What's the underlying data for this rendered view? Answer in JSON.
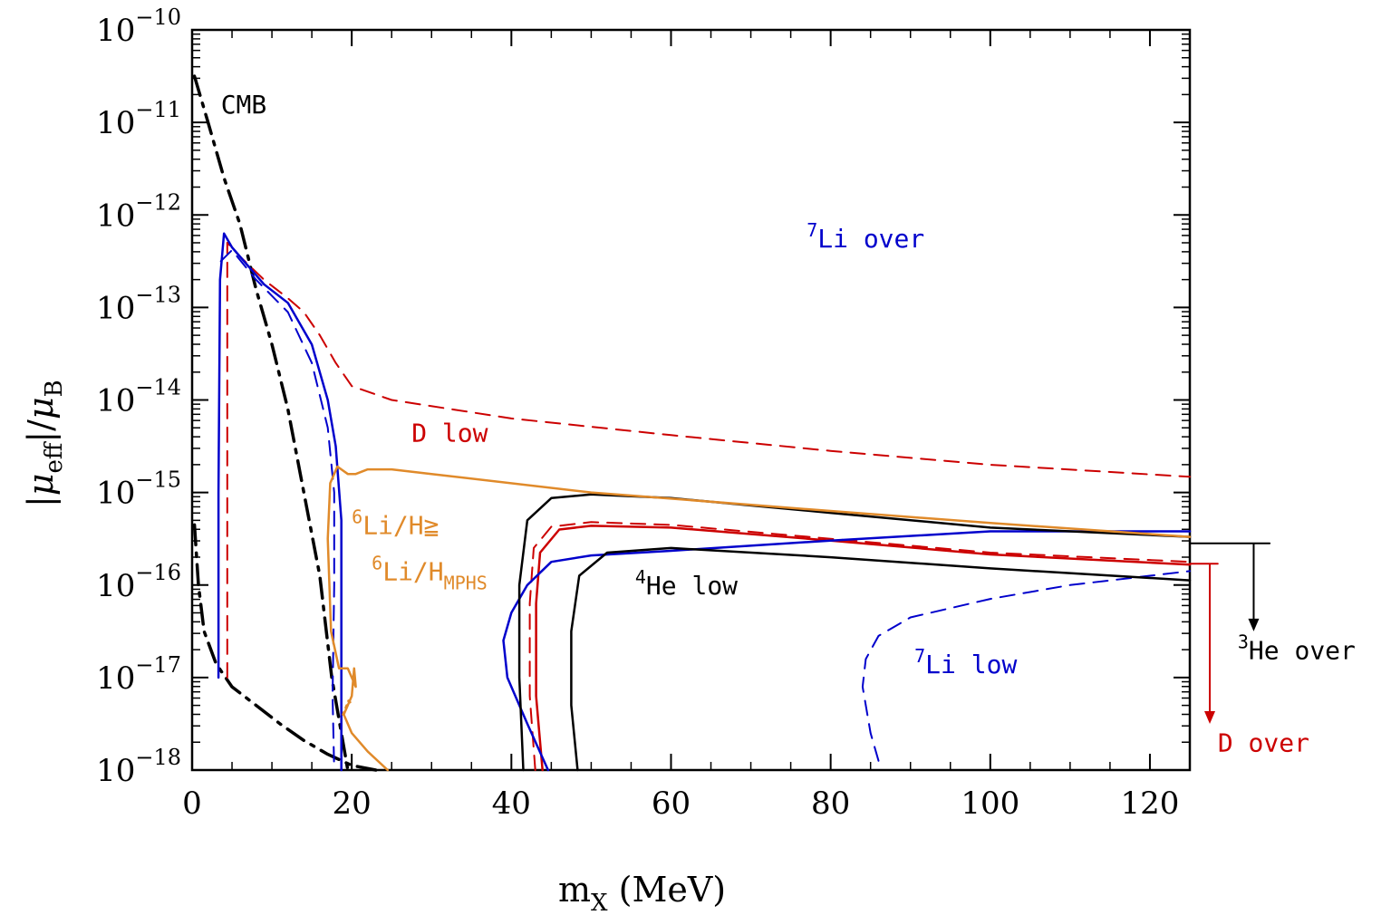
{
  "chart_data": {
    "type": "line",
    "xlabel": "m_X (MeV)",
    "xlabel_parts": {
      "main": "m",
      "sub": "X",
      "units": " (MeV)"
    },
    "ylabel": "|μ_eff|/μ_B",
    "ylabel_parts": {
      "bar_open": "|",
      "mu": "μ",
      "sub_eff": "eff",
      "bar_close": "|/",
      "mu2": "μ",
      "sub_b": "B"
    },
    "xlim": [
      0,
      125
    ],
    "ylim_log10": [
      -18,
      -10
    ],
    "y_scale": "log",
    "x_ticks": [
      0,
      20,
      40,
      60,
      80,
      100,
      120
    ],
    "x_tick_labels": [
      "0",
      "20",
      "40",
      "60",
      "80",
      "100",
      "120"
    ],
    "y_ticks_log10": [
      -10,
      -11,
      -12,
      -13,
      -14,
      -15,
      -16,
      -17,
      -18
    ],
    "y_tick_base": "10",
    "y_tick_exponents": [
      "−10",
      "−11",
      "−12",
      "−13",
      "−14",
      "−15",
      "−16",
      "−17",
      "−18"
    ],
    "grid": false,
    "annotations": [
      {
        "id": "cmb",
        "text": "CMB",
        "color": "#000000",
        "x": 3.6,
        "y_log10": -10.9
      },
      {
        "id": "li7-over",
        "sup": "7",
        "text": "Li over",
        "color": "#0000cc",
        "x": 77,
        "y_log10": -12.35
      },
      {
        "id": "d-low",
        "text": "D low",
        "color": "#cc0000",
        "x": 27.5,
        "y_log10": -14.45
      },
      {
        "id": "li6-ratio",
        "sup": "6",
        "text": "Li/H≧",
        "color": "#e08a2a",
        "x": 20,
        "y_log10": -15.45
      },
      {
        "id": "li6-mphs",
        "sup": "6",
        "text": "Li/H",
        "sub": "MPHS",
        "color": "#e08a2a",
        "x": 22.5,
        "y_log10": -15.95
      },
      {
        "id": "he4-low",
        "sup": "4",
        "text": "He low",
        "color": "#000000",
        "x": 55.5,
        "y_log10": -16.1
      },
      {
        "id": "li7-low",
        "sup": "7",
        "text": "Li low",
        "color": "#0000cc",
        "x": 90.5,
        "y_log10": -16.95
      },
      {
        "id": "he3-over",
        "sup": "3",
        "text": "He over",
        "color": "#000000",
        "x": 131,
        "y_log10": -16.8
      },
      {
        "id": "d-over",
        "text": "D over",
        "color": "#cc0000",
        "x": 128.5,
        "y_log10": -17.8
      }
    ],
    "arrows": [
      {
        "id": "he3-arrow",
        "color": "#000000",
        "x_from": 125,
        "x_to": 135,
        "y_log10": -15.55,
        "x_arrow": 133,
        "y_to_log10": -16.5
      },
      {
        "id": "d-arrow",
        "color": "#cc0000",
        "x_from": 125,
        "x_to": 128.5,
        "y_log10": -15.77,
        "x_arrow": 127.5,
        "y_to_log10": -17.5
      }
    ],
    "series": [
      {
        "id": "cmb-upper",
        "color": "#000000",
        "dash": "dashdot",
        "width": 3.5,
        "points": [
          [
            0.3,
            -10.5
          ],
          [
            2,
            -11
          ],
          [
            4,
            -11.6
          ],
          [
            6,
            -12.1
          ],
          [
            8,
            -12.8
          ],
          [
            10,
            -13.4
          ],
          [
            12,
            -14.1
          ],
          [
            14,
            -15
          ],
          [
            16,
            -15.9
          ],
          [
            17.5,
            -17
          ],
          [
            19.5,
            -18
          ]
        ]
      },
      {
        "id": "cmb-lower",
        "color": "#000000",
        "dash": "dashdot",
        "width": 3.5,
        "points": [
          [
            0.3,
            -15.35
          ],
          [
            0.8,
            -16
          ],
          [
            1.5,
            -16.5
          ],
          [
            3,
            -16.85
          ],
          [
            5,
            -17.1
          ],
          [
            8,
            -17.3
          ],
          [
            11,
            -17.5
          ],
          [
            14,
            -17.68
          ],
          [
            17,
            -17.83
          ],
          [
            20,
            -17.95
          ],
          [
            23,
            -18
          ]
        ]
      },
      {
        "id": "d-low-upper",
        "color": "#cc0000",
        "dash": "dashed",
        "width": 2,
        "points": [
          [
            4.4,
            -17
          ],
          [
            4.4,
            -14
          ],
          [
            4.4,
            -12.3
          ],
          [
            6,
            -12.45
          ],
          [
            9,
            -12.7
          ],
          [
            12,
            -12.9
          ],
          [
            14,
            -13.05
          ],
          [
            16,
            -13.3
          ],
          [
            18,
            -13.6
          ],
          [
            20,
            -13.85
          ],
          [
            25,
            -14
          ],
          [
            40,
            -14.2
          ],
          [
            60,
            -14.38
          ],
          [
            80,
            -14.55
          ],
          [
            100,
            -14.7
          ],
          [
            125,
            -14.83
          ]
        ]
      },
      {
        "id": "d-low-lower",
        "color": "#cc0000",
        "dash": "dashed",
        "width": 2,
        "points": [
          [
            43,
            -18
          ],
          [
            42.3,
            -17.2
          ],
          [
            42.3,
            -16.2
          ],
          [
            42.8,
            -15.6
          ],
          [
            45,
            -15.37
          ],
          [
            50,
            -15.32
          ],
          [
            60,
            -15.35
          ],
          [
            80,
            -15.5
          ],
          [
            100,
            -15.65
          ],
          [
            125,
            -15.75
          ]
        ]
      },
      {
        "id": "d-low-lower-solid",
        "color": "#cc0000",
        "dash": "solid",
        "width": 2.5,
        "points": [
          [
            43.9,
            -18
          ],
          [
            43.1,
            -17.2
          ],
          [
            43.1,
            -16.2
          ],
          [
            43.6,
            -15.65
          ],
          [
            46,
            -15.4
          ],
          [
            50,
            -15.36
          ],
          [
            60,
            -15.38
          ],
          [
            80,
            -15.52
          ],
          [
            100,
            -15.67
          ],
          [
            125,
            -15.78
          ]
        ]
      },
      {
        "id": "li7-over-solid",
        "color": "#0000cc",
        "dash": "solid",
        "width": 2.5,
        "points": [
          [
            3.3,
            -17
          ],
          [
            3.3,
            -15
          ],
          [
            3.5,
            -12.7
          ],
          [
            4,
            -12.2
          ],
          [
            5,
            -12.35
          ],
          [
            7,
            -12.55
          ],
          [
            9,
            -12.75
          ],
          [
            12,
            -12.95
          ],
          [
            15,
            -13.4
          ],
          [
            17,
            -14
          ],
          [
            18,
            -14.5
          ],
          [
            18.7,
            -15.3
          ],
          [
            18.7,
            -18
          ]
        ]
      },
      {
        "id": "li7-over-dashed",
        "color": "#0000cc",
        "dash": "dashed",
        "width": 2,
        "points": [
          [
            3.6,
            -12.5
          ],
          [
            5,
            -12.38
          ],
          [
            8,
            -12.7
          ],
          [
            12,
            -13.05
          ],
          [
            15,
            -13.6
          ],
          [
            17,
            -14.3
          ],
          [
            17.8,
            -15
          ],
          [
            17.8,
            -16
          ],
          [
            17.6,
            -17.2
          ],
          [
            17.8,
            -18
          ]
        ]
      },
      {
        "id": "li7-low-dashed",
        "color": "#0000cc",
        "dash": "dashed",
        "width": 2,
        "points": [
          [
            86,
            -17.9
          ],
          [
            85,
            -17.6
          ],
          [
            84,
            -17.1
          ],
          [
            84.4,
            -16.8
          ],
          [
            86,
            -16.55
          ],
          [
            90,
            -16.35
          ],
          [
            100,
            -16.15
          ],
          [
            110,
            -16
          ],
          [
            125,
            -15.85
          ]
        ]
      },
      {
        "id": "li7-mid",
        "color": "#0000cc",
        "dash": "solid",
        "width": 2.5,
        "points": [
          [
            44.6,
            -18
          ],
          [
            42,
            -17.5
          ],
          [
            39.5,
            -17
          ],
          [
            39,
            -16.6
          ],
          [
            40,
            -16.3
          ],
          [
            42,
            -16
          ],
          [
            45,
            -15.75
          ],
          [
            50,
            -15.68
          ],
          [
            60,
            -15.63
          ],
          [
            80,
            -15.52
          ],
          [
            100,
            -15.42
          ],
          [
            125,
            -15.42
          ]
        ]
      },
      {
        "id": "he4-outer",
        "color": "#000000",
        "dash": "solid",
        "width": 2.5,
        "points": [
          [
            41.5,
            -18
          ],
          [
            41,
            -17
          ],
          [
            41,
            -16
          ],
          [
            42,
            -15.3
          ],
          [
            45,
            -15.06
          ],
          [
            50,
            -15.02
          ],
          [
            60,
            -15.06
          ],
          [
            80,
            -15.22
          ],
          [
            100,
            -15.38
          ],
          [
            125,
            -15.48
          ]
        ]
      },
      {
        "id": "he4-inner",
        "color": "#000000",
        "dash": "solid",
        "width": 2.5,
        "points": [
          [
            48.3,
            -18
          ],
          [
            47.5,
            -17.3
          ],
          [
            47.5,
            -16.5
          ],
          [
            48.5,
            -15.9
          ],
          [
            52,
            -15.65
          ],
          [
            60,
            -15.6
          ],
          [
            80,
            -15.7
          ],
          [
            100,
            -15.82
          ],
          [
            125,
            -15.95
          ]
        ]
      },
      {
        "id": "li6-curve",
        "color": "#e08a2a",
        "dash": "solid",
        "width": 2.5,
        "points": [
          [
            24.5,
            -18
          ],
          [
            22,
            -17.8
          ],
          [
            20,
            -17.6
          ],
          [
            19,
            -17.4
          ],
          [
            19.5,
            -17.3
          ],
          [
            20,
            -17.2
          ],
          [
            20.3,
            -16.9
          ],
          [
            20.5,
            -17.1
          ],
          [
            19.5,
            -16.9
          ],
          [
            18.4,
            -16.9
          ],
          [
            17.4,
            -16.5
          ],
          [
            17,
            -15.5
          ],
          [
            17.3,
            -14.9
          ],
          [
            18.2,
            -14.72
          ],
          [
            19.5,
            -14.8
          ],
          [
            20.5,
            -14.8
          ],
          [
            22,
            -14.75
          ],
          [
            25,
            -14.75
          ],
          [
            30,
            -14.8
          ],
          [
            50,
            -15
          ],
          [
            80,
            -15.2
          ],
          [
            100,
            -15.33
          ],
          [
            125,
            -15.48
          ]
        ]
      },
      {
        "id": "li6-dotted",
        "color": "#e08a2a",
        "dash": "dotted",
        "width": 2.5,
        "points": [
          [
            18.9,
            -17.4
          ],
          [
            19.6,
            -17.25
          ],
          [
            20.2,
            -17.3
          ]
        ]
      },
      {
        "id": "he3-tail",
        "color": "#000000",
        "dash": "solid",
        "width": 2,
        "points": [
          [
            125,
            -15.55
          ],
          [
            135,
            -15.55
          ]
        ]
      },
      {
        "id": "d-tail",
        "color": "#cc0000",
        "dash": "solid",
        "width": 2,
        "points": [
          [
            125,
            -15.77
          ],
          [
            128.5,
            -15.77
          ]
        ]
      }
    ]
  }
}
